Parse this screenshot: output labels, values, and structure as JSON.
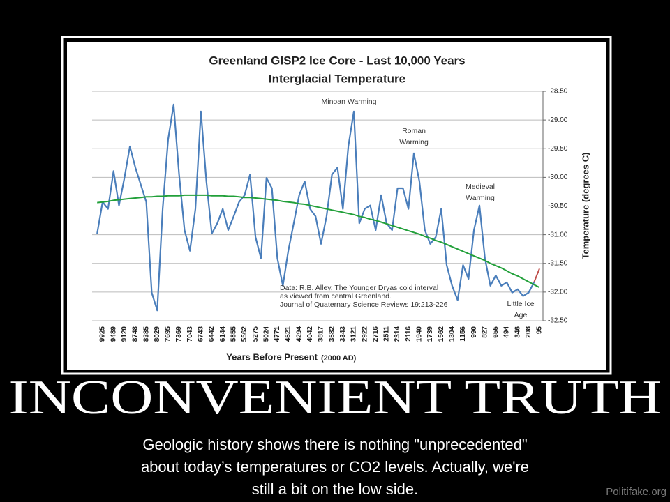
{
  "chart_data": {
    "type": "line",
    "title": "Greenland GISP2 Ice Core - Last 10,000 Years",
    "subtitle": "Interglacial Temperature",
    "x_label": "Years Before Present",
    "x_label_note": "(2000 AD)",
    "y_label": "Temperature (degrees C)",
    "categories": [
      null,
      "9925",
      null,
      "9489",
      null,
      "9120",
      null,
      "8748",
      null,
      "8385",
      null,
      "8029",
      null,
      "7695",
      null,
      "7369",
      null,
      "7043",
      null,
      "6743",
      null,
      "6442",
      null,
      "6144",
      null,
      "5855",
      null,
      "5562",
      null,
      "5275",
      null,
      "5024",
      null,
      "4771",
      null,
      "4521",
      null,
      "4294",
      null,
      "4042",
      null,
      "3817",
      null,
      "3582",
      null,
      "3343",
      null,
      "3121",
      null,
      "2922",
      null,
      "2716",
      null,
      "2511",
      null,
      "2314",
      null,
      "2116",
      null,
      "1940",
      null,
      "1739",
      null,
      "1562",
      null,
      "1304",
      null,
      "1156",
      null,
      "990",
      null,
      "827",
      null,
      "655",
      null,
      "494",
      null,
      "346",
      null,
      "208",
      null,
      "95"
    ],
    "series": [
      {
        "name": "GISP2 temperature",
        "color": "#4a7ebb",
        "values": [
          -30.98,
          -30.43,
          -30.55,
          -29.89,
          -30.49,
          -30.01,
          -29.46,
          -29.83,
          -30.13,
          -30.43,
          -32.01,
          -32.32,
          -30.55,
          -29.34,
          -28.73,
          -29.95,
          -30.92,
          -31.28,
          -30.55,
          -28.85,
          -30.07,
          -30.98,
          -30.8,
          -30.55,
          -30.92,
          -30.68,
          -30.43,
          -30.31,
          -29.95,
          -31.04,
          -31.41,
          -30.01,
          -30.19,
          -31.41,
          -31.89,
          -31.28,
          -30.8,
          -30.31,
          -30.07,
          -30.55,
          -30.68,
          -31.16,
          -30.68,
          -29.95,
          -29.83,
          -30.55,
          -29.46,
          -28.85,
          -30.8,
          -30.55,
          -30.49,
          -30.92,
          -30.31,
          -30.8,
          -30.92,
          -30.19,
          -30.19,
          -30.55,
          -29.58,
          -30.07,
          -30.92,
          -31.16,
          -31.04,
          -30.55,
          -31.53,
          -31.89,
          -32.14,
          -31.53,
          -31.77,
          -30.92,
          -30.49,
          -31.41,
          -31.89,
          -31.71,
          -31.89,
          -31.83,
          -32.01,
          -31.95,
          -32.07,
          -32.01,
          -31.83,
          null
        ]
      },
      {
        "name": "Recent",
        "color": "#c0504d",
        "values": [
          null,
          null,
          null,
          null,
          null,
          null,
          null,
          null,
          null,
          null,
          null,
          null,
          null,
          null,
          null,
          null,
          null,
          null,
          null,
          null,
          null,
          null,
          null,
          null,
          null,
          null,
          null,
          null,
          null,
          null,
          null,
          null,
          null,
          null,
          null,
          null,
          null,
          null,
          null,
          null,
          null,
          null,
          null,
          null,
          null,
          null,
          null,
          null,
          null,
          null,
          null,
          null,
          null,
          null,
          null,
          null,
          null,
          null,
          null,
          null,
          null,
          null,
          null,
          null,
          null,
          null,
          null,
          null,
          null,
          null,
          null,
          null,
          null,
          null,
          null,
          null,
          null,
          null,
          null,
          null,
          -31.83,
          -31.59
        ]
      },
      {
        "name": "Trend",
        "color": "#22a03a",
        "values": [
          -30.44,
          -30.43,
          -30.42,
          -30.4,
          -30.39,
          -30.38,
          -30.37,
          -30.36,
          -30.35,
          -30.34,
          -30.34,
          -30.33,
          -30.33,
          -30.32,
          -30.32,
          -30.32,
          -30.31,
          -30.31,
          -30.31,
          -30.31,
          -30.31,
          -30.32,
          -30.32,
          -30.32,
          -30.33,
          -30.33,
          -30.34,
          -30.35,
          -30.35,
          -30.36,
          -30.37,
          -30.38,
          -30.39,
          -30.4,
          -30.42,
          -30.43,
          -30.44,
          -30.46,
          -30.47,
          -30.49,
          -30.51,
          -30.53,
          -30.55,
          -30.57,
          -30.59,
          -30.61,
          -30.63,
          -30.65,
          -30.68,
          -30.7,
          -30.73,
          -30.75,
          -30.78,
          -30.81,
          -30.84,
          -30.87,
          -30.9,
          -30.93,
          -30.96,
          -30.99,
          -31.03,
          -31.06,
          -31.1,
          -31.13,
          -31.17,
          -31.21,
          -31.25,
          -31.29,
          -31.33,
          -31.37,
          -31.41,
          -31.45,
          -31.5,
          -31.54,
          -31.58,
          -31.63,
          -31.68,
          -31.72,
          -31.77,
          -31.82,
          -31.87,
          -31.92
        ]
      }
    ],
    "ylim": [
      -32.5,
      -28.5
    ],
    "yticks": [
      {
        "value": -28.5,
        "label": "-28.50"
      },
      {
        "value": -29,
        "label": "-29.00"
      },
      {
        "value": -29.5,
        "label": "-29.50"
      },
      {
        "value": -30,
        "label": "-30.00"
      },
      {
        "value": -30.5,
        "label": "-30.50"
      },
      {
        "value": -31,
        "label": "-31.00"
      },
      {
        "value": -31.5,
        "label": "-31.50"
      },
      {
        "value": -32,
        "label": "-32.00"
      },
      {
        "value": -32.5,
        "label": "-32.50"
      }
    ],
    "y_axis_side": "right",
    "grid": true,
    "annotations": [
      {
        "lines": [
          "Minoan Warming"
        ]
      },
      {
        "lines": [
          "Roman",
          "Warming"
        ]
      },
      {
        "lines": [
          "Medieval",
          "Warming"
        ]
      },
      {
        "lines": [
          "Little Ice",
          "Age"
        ]
      },
      {
        "lines": [
          "Data: R.B. Alley,  The Younger Dryas cold interval",
          "as viewed from central Greenland.",
          "Journal of Quaternary  Science Reviews 19:213-226"
        ]
      }
    ]
  },
  "poster": {
    "headline": "INCONVENIENT TRUTH",
    "caption": [
      "Geologic history shows there is nothing \"unprecedented\"",
      "about today’s temperatures or CO2 levels. Actually, we're",
      "still a bit on the low side."
    ],
    "watermark": "Politifake.org"
  }
}
